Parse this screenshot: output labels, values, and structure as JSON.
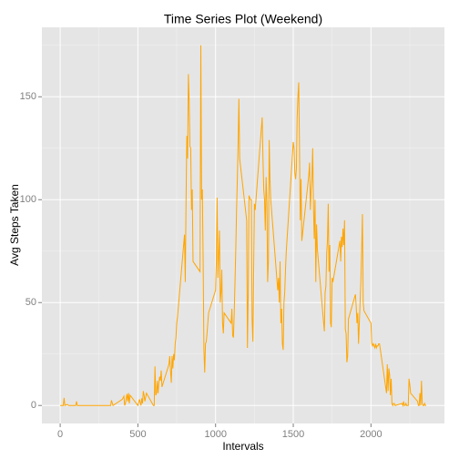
{
  "chart_data": {
    "type": "line",
    "title": "Time Series Plot (Weekend)",
    "x_label": "Intervals",
    "y_label": "Avg Steps Taken",
    "x": [
      0,
      5,
      10,
      15,
      20,
      25,
      30,
      45,
      55,
      100,
      105,
      110,
      200,
      300,
      325,
      330,
      340,
      400,
      410,
      415,
      420,
      430,
      435,
      440,
      445,
      450,
      500,
      510,
      520,
      525,
      530,
      535,
      540,
      545,
      550,
      555,
      600,
      605,
      610,
      615,
      620,
      625,
      630,
      635,
      640,
      645,
      650,
      655,
      700,
      705,
      710,
      715,
      720,
      725,
      730,
      735,
      740,
      745,
      750,
      755,
      800,
      805,
      810,
      815,
      820,
      825,
      830,
      835,
      840,
      845,
      850,
      855,
      900,
      905,
      910,
      915,
      920,
      925,
      930,
      935,
      940,
      945,
      950,
      955,
      1000,
      1005,
      1010,
      1015,
      1020,
      1025,
      1030,
      1035,
      1040,
      1045,
      1050,
      1055,
      1100,
      1105,
      1110,
      1115,
      1120,
      1125,
      1130,
      1135,
      1140,
      1145,
      1150,
      1155,
      1200,
      1205,
      1210,
      1215,
      1220,
      1225,
      1230,
      1235,
      1240,
      1245,
      1250,
      1255,
      1300,
      1305,
      1310,
      1315,
      1320,
      1325,
      1330,
      1335,
      1340,
      1345,
      1350,
      1355,
      1400,
      1405,
      1410,
      1415,
      1420,
      1425,
      1430,
      1435,
      1440,
      1445,
      1450,
      1455,
      1500,
      1505,
      1510,
      1515,
      1520,
      1525,
      1530,
      1535,
      1540,
      1545,
      1550,
      1555,
      1600,
      1605,
      1610,
      1615,
      1620,
      1625,
      1630,
      1635,
      1640,
      1645,
      1650,
      1655,
      1700,
      1705,
      1710,
      1715,
      1720,
      1725,
      1730,
      1735,
      1740,
      1745,
      1750,
      1755,
      1800,
      1805,
      1810,
      1815,
      1820,
      1825,
      1830,
      1835,
      1840,
      1845,
      1850,
      1855,
      1900,
      1905,
      1910,
      1915,
      1920,
      1925,
      1930,
      1935,
      1940,
      1945,
      1950,
      1955,
      2000,
      2005,
      2010,
      2015,
      2020,
      2025,
      2030,
      2035,
      2040,
      2045,
      2050,
      2055,
      2100,
      2105,
      2110,
      2115,
      2120,
      2125,
      2130,
      2135,
      2140,
      2145,
      2150,
      2155,
      2200,
      2205,
      2210,
      2215,
      2220,
      2225,
      2230,
      2235,
      2240,
      2245,
      2250,
      2255,
      2300,
      2305,
      2310,
      2315,
      2320,
      2325,
      2330,
      2335,
      2340,
      2345,
      2350,
      2355
    ],
    "series": [
      {
        "name": "Avg Steps Taken",
        "color": "#FFA500",
        "values": [
          0,
          0,
          0,
          0,
          0,
          3.7,
          0,
          0.5,
          0,
          0,
          2,
          0,
          0,
          0,
          0,
          2.5,
          0,
          3,
          4.5,
          0,
          1,
          5.6,
          2,
          6,
          1,
          5,
          0,
          3,
          0,
          3.5,
          1,
          7,
          5,
          2,
          4,
          6,
          0,
          0,
          19,
          5,
          6,
          12,
          6,
          11,
          14,
          12,
          17,
          9,
          20,
          24,
          17,
          11,
          24,
          18,
          25,
          22,
          30,
          33,
          40,
          43,
          83,
          60,
          100,
          131,
          120,
          161,
          148,
          126,
          125,
          95,
          105,
          70,
          65,
          175,
          100,
          105,
          70,
          27,
          16,
          30,
          31,
          35,
          40,
          45,
          56,
          70,
          101,
          62,
          73,
          85,
          50,
          55,
          66,
          40,
          35,
          45,
          40,
          47,
          34,
          33,
          45,
          60,
          76,
          95,
          110,
          127,
          149,
          120,
          90,
          28,
          54,
          102,
          101,
          100,
          100,
          42,
          31,
          65,
          98,
          95,
          140,
          120,
          105,
          100,
          85,
          111,
          100,
          60,
          70,
          129,
          110,
          100,
          56,
          62,
          50,
          70,
          40,
          47,
          30,
          27,
          50,
          55,
          66,
          75,
          128,
          125,
          113,
          110,
          115,
          140,
          150,
          157,
          126,
          90,
          110,
          80,
          112,
          118,
          95,
          105,
          110,
          125,
          96,
          81,
          100,
          60,
          88,
          76,
          36,
          55,
          58,
          74,
          80,
          98,
          65,
          78,
          40,
          38,
          62,
          60,
          80,
          70,
          82,
          77,
          86,
          78,
          90,
          37,
          35,
          21,
          24,
          42,
          54,
          48,
          40,
          45,
          30,
          40,
          50,
          60,
          75,
          93,
          50,
          46,
          40,
          30,
          29,
          30,
          29,
          28,
          30,
          28,
          29,
          29,
          30,
          30,
          6,
          20,
          7,
          18,
          15,
          5,
          13,
          1,
          0,
          1,
          1,
          0,
          1,
          0,
          2,
          0,
          0,
          1,
          0,
          0,
          0,
          13,
          10,
          6,
          2,
          0,
          0,
          6,
          0,
          12,
          1,
          0,
          0,
          1,
          0,
          0
        ]
      }
    ],
    "xlim": [
      -117.75,
      2472.75
    ],
    "ylim": [
      -8.75,
      183.75
    ],
    "xticks": [
      0,
      500,
      1000,
      1500,
      2000
    ],
    "yticks": [
      0,
      50,
      100,
      150
    ],
    "grid": true
  }
}
